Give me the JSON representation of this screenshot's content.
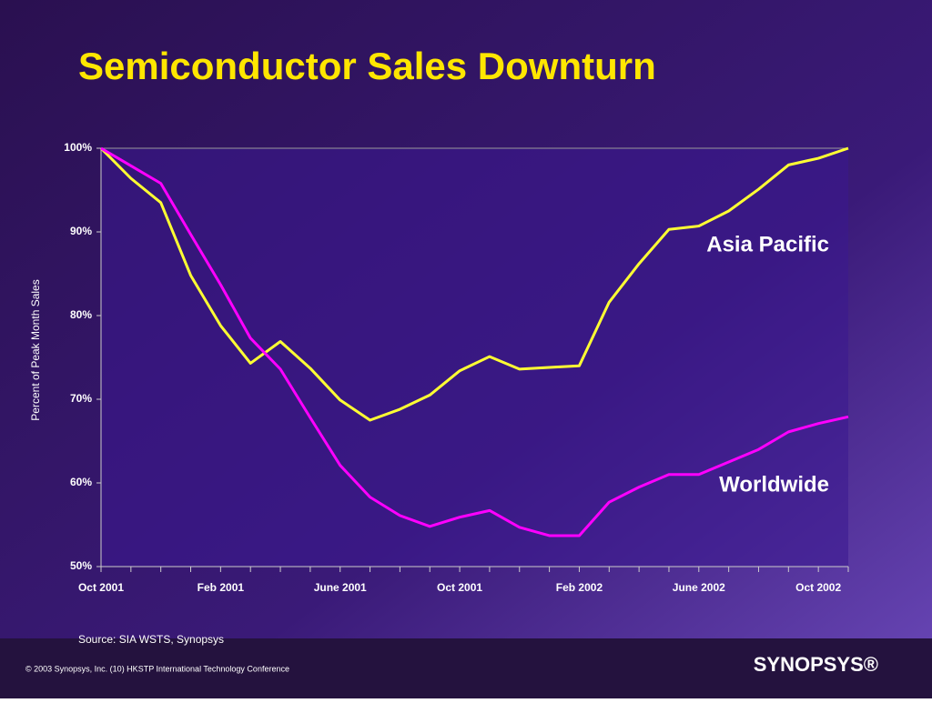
{
  "chart_data": {
    "type": "line",
    "title": "Semiconductor Sales Downturn",
    "y_label": "Percent of Peak Month Sales",
    "source": "Source: SIA WSTS, Synopsys",
    "categories": [
      "Oct 2001",
      null,
      null,
      null,
      "Feb 2001",
      null,
      null,
      null,
      "June 2001",
      null,
      null,
      null,
      "Oct 2001",
      null,
      null,
      null,
      "Feb 2002",
      null,
      null,
      null,
      "June 2002",
      null,
      null,
      null,
      "Oct 2002",
      null
    ],
    "series": [
      {
        "name": "Asia Pacific",
        "color": "#ffff33",
        "values": [
          100,
          96.4,
          93.5,
          84.8,
          78.8,
          74.3,
          76.9,
          73.7,
          69.9,
          67.5,
          68.8,
          70.5,
          73.4,
          75.1,
          73.6,
          73.8,
          74.0,
          81.6,
          86.2,
          90.3,
          90.7,
          92.5,
          95.1,
          98.0,
          98.8,
          100
        ]
      },
      {
        "name": "Worldwide",
        "color": "#ff00ff",
        "values": [
          100,
          97.9,
          95.8,
          89.7,
          83.7,
          77.3,
          73.6,
          67.8,
          62.1,
          58.3,
          56.1,
          54.8,
          55.9,
          56.7,
          54.7,
          53.7,
          53.7,
          57.7,
          59.5,
          61.0,
          61.0,
          62.5,
          64.0,
          66.1,
          67.1,
          67.9
        ]
      }
    ],
    "ylim": [
      50,
      100
    ],
    "yticks": [
      {
        "value": 50,
        "label": "50%"
      },
      {
        "value": 60,
        "label": "60%"
      },
      {
        "value": 70,
        "label": "70%"
      },
      {
        "value": 80,
        "label": "80%"
      },
      {
        "value": 90,
        "label": "90%"
      },
      {
        "value": 100,
        "label": "100%"
      }
    ],
    "grid": false
  },
  "footer": {
    "copyright": "© 2003 Synopsys, Inc. (10) HKSTP International Technology Conference",
    "logo": "SYNOPSYS®"
  }
}
